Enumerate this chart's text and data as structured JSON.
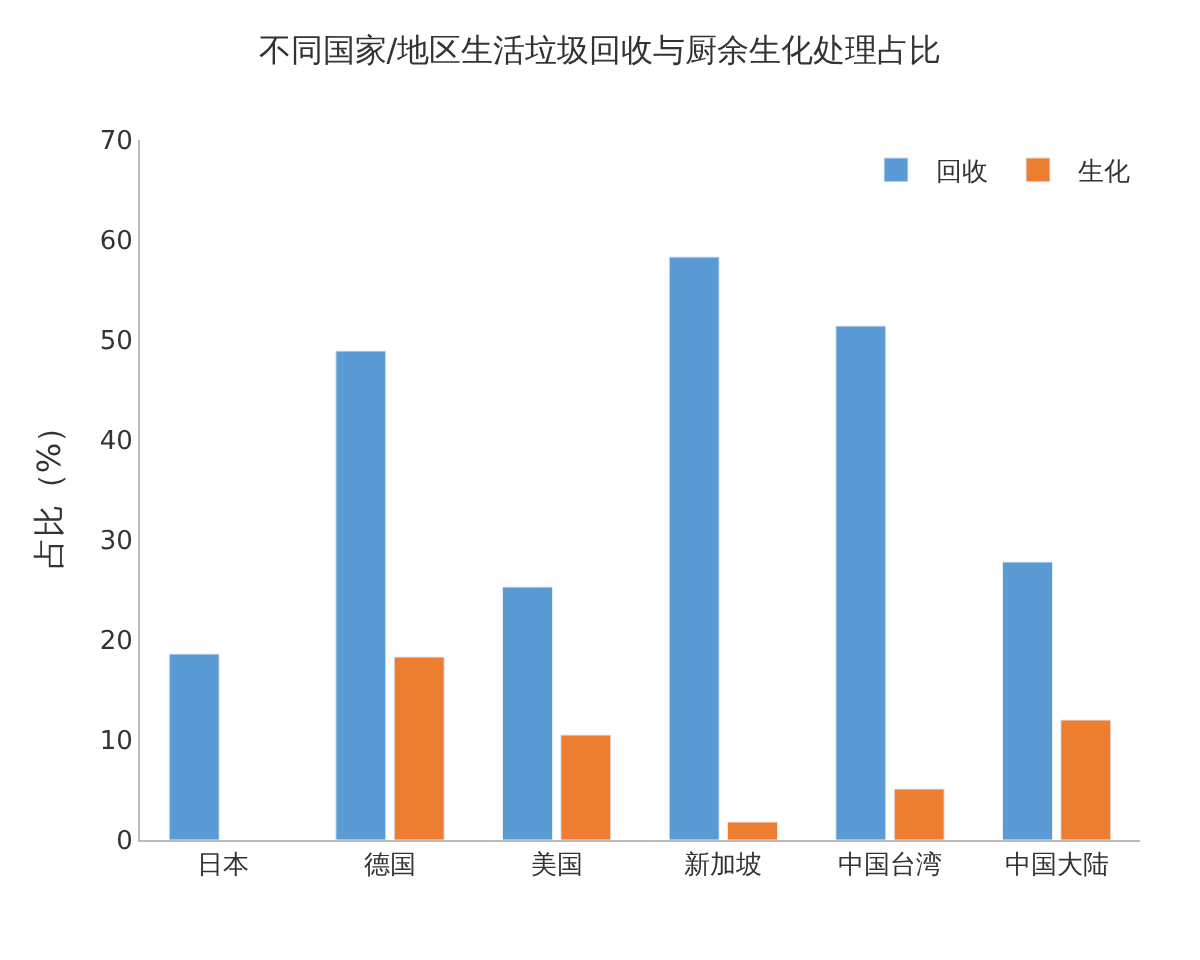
{
  "chart_data": {
    "type": "bar",
    "title": "不同国家/地区生活垃圾回收与厨余生化处理占比",
    "ylabel": "占比（%）",
    "categories": [
      "日本",
      "德国",
      "美国",
      "新加坡",
      "中国台湾",
      "中国大陆"
    ],
    "series": [
      {
        "name": "回收",
        "color": "#5b9bd5",
        "values": [
          18.6,
          48.9,
          25.3,
          58.3,
          51.4,
          27.8
        ]
      },
      {
        "name": "生化",
        "color": "#ed7d31",
        "values": [
          null,
          18.3,
          10.5,
          1.8,
          5.1,
          12
        ]
      }
    ],
    "ylim": [
      0,
      70
    ],
    "yticks": [
      0,
      10,
      20,
      30,
      40,
      50,
      60,
      70
    ],
    "legend": "top right"
  }
}
